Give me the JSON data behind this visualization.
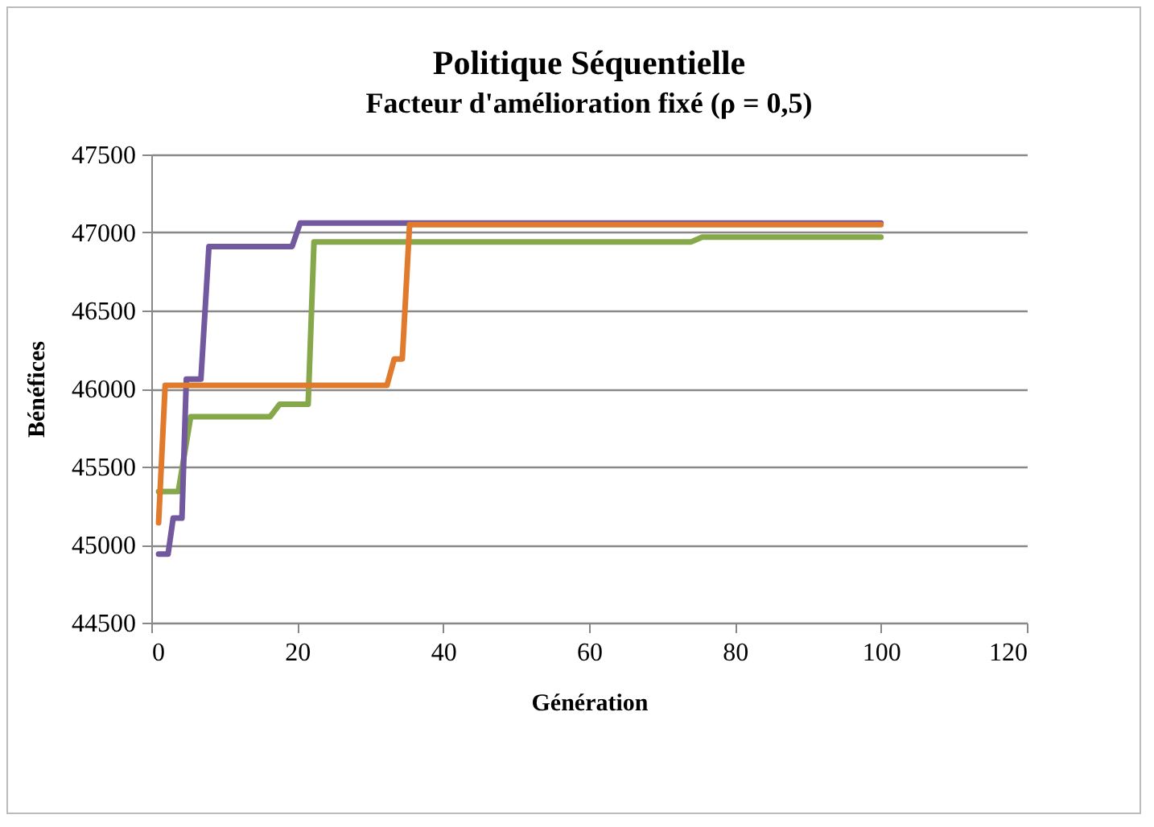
{
  "chart_data": {
    "type": "line",
    "title": "Politique Séquentielle",
    "subtitle": "Facteur d'amélioration fixé (ρ = 0,5)",
    "xlabel": "Génération",
    "ylabel": "Bénéfices",
    "xlim": [
      0,
      120
    ],
    "xticks": [
      0,
      20,
      40,
      60,
      80,
      100,
      120
    ],
    "ylim": [
      44500,
      47500
    ],
    "yticks": [
      44500,
      45000,
      45500,
      46000,
      46500,
      47000,
      47500
    ],
    "grid": "y",
    "marker": "none",
    "line_style": "solid",
    "series": [
      {
        "color": "#86a84a",
        "x": [
          1,
          3.7,
          5.4,
          16.3,
          17.6,
          21.5,
          22.3,
          74,
          75.5,
          100
        ],
        "values": [
          45340,
          45340,
          45820,
          45820,
          45900,
          45900,
          46940,
          46940,
          46970,
          46970
        ]
      },
      {
        "color": "#71589f",
        "x": [
          1,
          2.3,
          3,
          4.2,
          4.8,
          6.8,
          7.9,
          19.3,
          20.4,
          100
        ],
        "values": [
          44940,
          44940,
          45170,
          45170,
          46060,
          46060,
          46910,
          46910,
          47060,
          47060
        ]
      },
      {
        "color": "#e07b2e",
        "x": [
          1,
          1.9,
          32.3,
          33.3,
          34.4,
          35.4,
          100
        ],
        "values": [
          45140,
          46020,
          46020,
          46190,
          46190,
          47050,
          47050
        ]
      }
    ]
  }
}
